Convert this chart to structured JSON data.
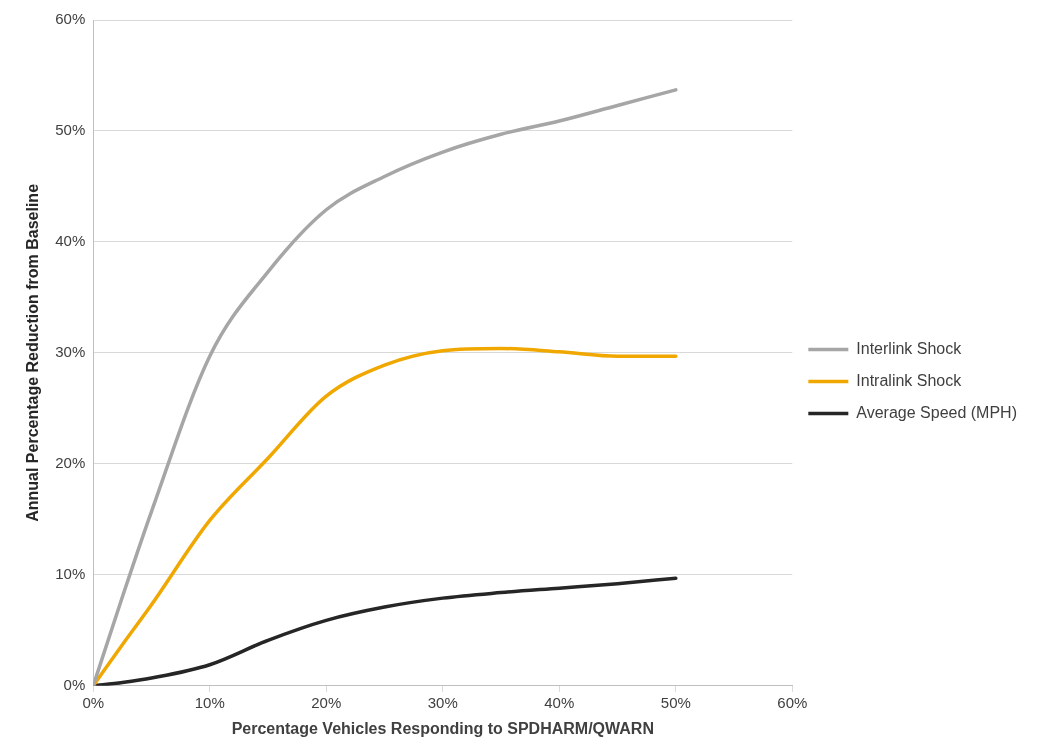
{
  "chart_data": {
    "type": "line",
    "xlabel": "Percentage Vehicles Responding to SPDHARM/QWARN",
    "ylabel": "Annual Percentage Reduction from Baseline",
    "x": [
      0,
      2.5,
      5,
      10,
      15,
      20,
      25,
      30,
      35,
      40,
      45,
      50
    ],
    "series": [
      {
        "name": "Interlink Shock",
        "color": "#a6a6a6",
        "values": [
          0,
          8,
          15.7,
          29.7,
          37.3,
          42.9,
          45.9,
          48.1,
          49.7,
          50.9,
          52.3,
          53.7
        ]
      },
      {
        "name": "Intralink Shock",
        "color": "#f0a800",
        "values": [
          0,
          3.7,
          7.3,
          14.9,
          20.5,
          26.1,
          28.9,
          30.2,
          30.4,
          30.1,
          29.7,
          29.7
        ]
      },
      {
        "name": "Average Speed (MPH)",
        "color": "#262626",
        "values": [
          0,
          0.3,
          0.7,
          1.9,
          4.1,
          5.9,
          7.1,
          7.9,
          8.4,
          8.8,
          9.2,
          9.7
        ]
      }
    ],
    "xlim": [
      0,
      60
    ],
    "xticks": [
      {
        "value": 0,
        "label": "0%"
      },
      {
        "value": 10,
        "label": "10%"
      },
      {
        "value": 20,
        "label": "20%"
      },
      {
        "value": 30,
        "label": "30%"
      },
      {
        "value": 40,
        "label": "40%"
      },
      {
        "value": 50,
        "label": "50%"
      },
      {
        "value": 60,
        "label": "60%"
      }
    ],
    "ylim": [
      0,
      60
    ],
    "yticks": [
      {
        "value": 0,
        "label": "0%"
      },
      {
        "value": 10,
        "label": "10%"
      },
      {
        "value": 20,
        "label": "20%"
      },
      {
        "value": 30,
        "label": "30%"
      },
      {
        "value": 40,
        "label": "40%"
      },
      {
        "value": 50,
        "label": "50%"
      },
      {
        "value": 60,
        "label": "60%"
      }
    ],
    "grid": "y",
    "legend": "right",
    "marker": "none",
    "line_style": "solid"
  }
}
